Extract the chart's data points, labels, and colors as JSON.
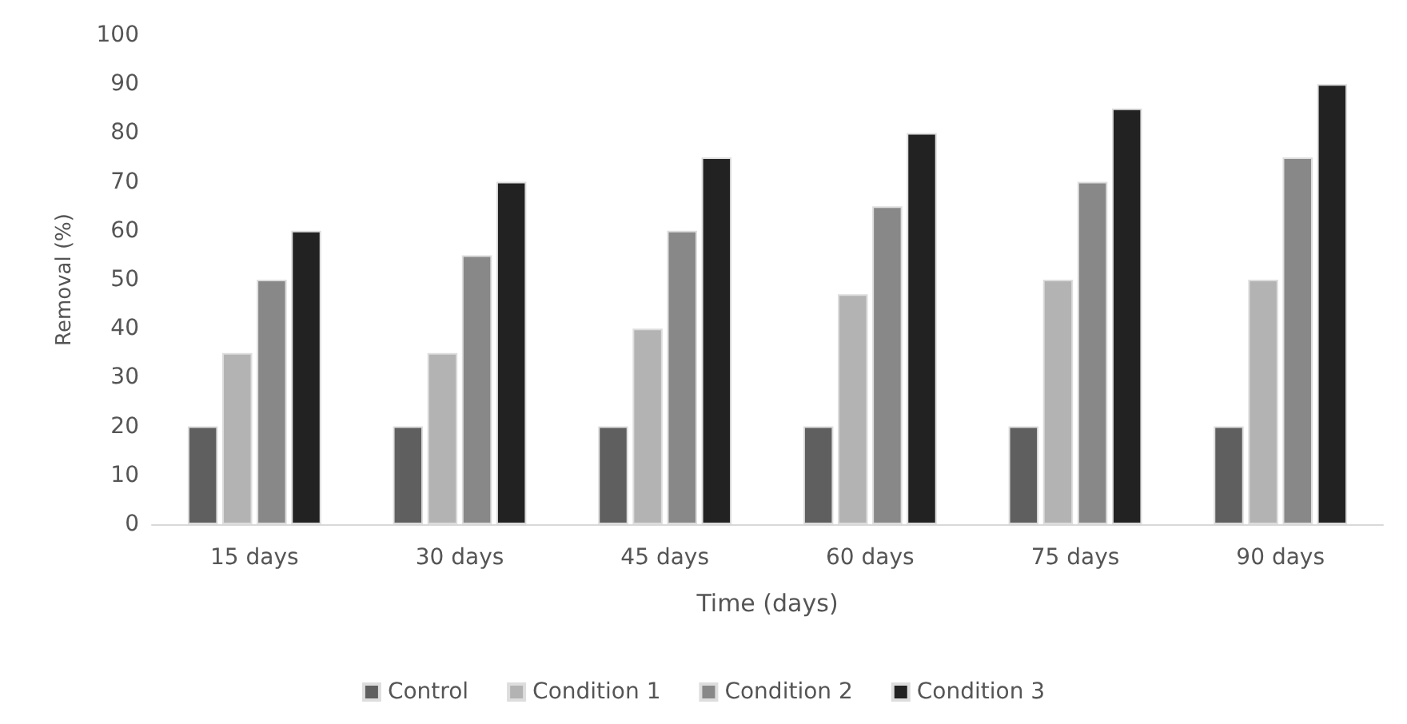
{
  "chart_data": {
    "type": "bar",
    "xlabel": "Time (days)",
    "ylabel": "Removal (%)",
    "categories": [
      "15 days",
      "30 days",
      "45 days",
      "60 days",
      "75 days",
      "90 days"
    ],
    "series": [
      {
        "name": "Control",
        "color": "#5f5f5f",
        "values": [
          20,
          20,
          20,
          20,
          20,
          20
        ]
      },
      {
        "name": "Condition 1",
        "color": "#b3b3b3",
        "values": [
          35,
          35,
          40,
          47,
          50,
          50
        ]
      },
      {
        "name": "Condition 2",
        "color": "#888888",
        "values": [
          50,
          55,
          60,
          65,
          70,
          75
        ]
      },
      {
        "name": "Condition 3",
        "color": "#222222",
        "values": [
          60,
          70,
          75,
          80,
          85,
          90
        ]
      }
    ],
    "ylim": [
      0,
      100
    ],
    "yticks": [
      0,
      10,
      20,
      30,
      40,
      50,
      60,
      70,
      80,
      90,
      100
    ],
    "grid": false,
    "legend": "bottom"
  }
}
